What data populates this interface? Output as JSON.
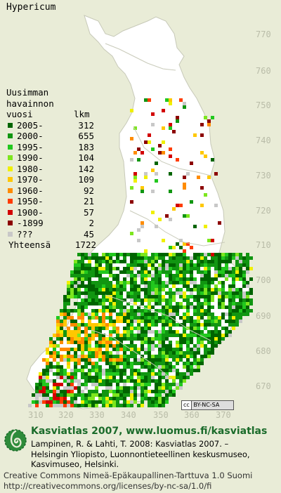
{
  "title": "Hypericum",
  "legend": {
    "header": [
      "Uusimman",
      "havainnon",
      "vuosi",
      "lkm"
    ],
    "items": [
      {
        "year": "2005-",
        "count": "312",
        "color": "#006400"
      },
      {
        "year": "2000-",
        "count": "655",
        "color": "#119611"
      },
      {
        "year": "1995-",
        "count": "183",
        "color": "#22c81e"
      },
      {
        "year": "1990-",
        "count": "104",
        "color": "#7de61e"
      },
      {
        "year": "1980-",
        "count": "142",
        "color": "#f0f000"
      },
      {
        "year": "1970-",
        "count": "109",
        "color": "#ffc800"
      },
      {
        "year": "1960-",
        "count": "92",
        "color": "#ff8c00"
      },
      {
        "year": "1950-",
        "count": "21",
        "color": "#ff3c00"
      },
      {
        "year": "1900-",
        "count": "57",
        "color": "#d20000"
      },
      {
        "year": "-1899",
        "count": "2",
        "color": "#8c0000"
      },
      {
        "year": "???",
        "count": "45",
        "color": "#c8c8c8"
      }
    ],
    "total_label": "Yhteensä",
    "total_count": "1722"
  },
  "y_ticks": [
    "770",
    "760",
    "750",
    "740",
    "730",
    "720",
    "710",
    "700",
    "690",
    "680",
    "670"
  ],
  "x_ticks": [
    "310",
    "320",
    "330",
    "340",
    "350",
    "360",
    "370"
  ],
  "cc_badge": {
    "cc": "cc",
    "text": "BY-NC-SA"
  },
  "credit": {
    "headline": "Kasviatlas 2007, www.luomus.fi/kasviatlas",
    "citation": [
      "Lampinen, R. & Lahti, T. 2008: Kasviatlas 2007. –",
      "Helsingin Yliopisto, Luonnontieteellinen keskusmuseo,",
      "Kasvimuseo, Helsinki."
    ]
  },
  "license": [
    "Creative Commons Nimeä-Epäkaupallinen-Tarttuva 1.0 Suomi",
    "http://creativecommons.org/licenses/by-nc-sa/1.0/fi"
  ],
  "colors": {
    "background": "#e9ecd7",
    "land": "#ffffff",
    "tick": "#b9bca8",
    "brand": "#1a6b2a"
  }
}
